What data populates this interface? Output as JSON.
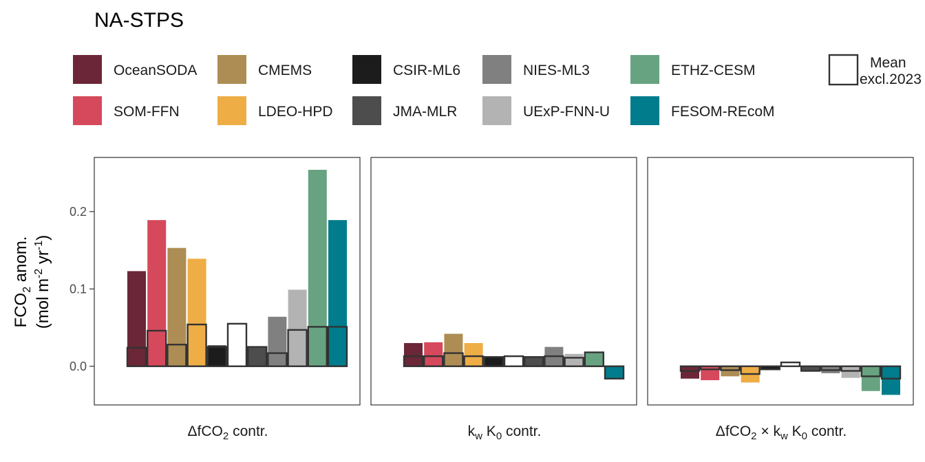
{
  "chart_data": {
    "type": "bar",
    "title": "NA-STPS",
    "ylabel": {
      "line1_prefix": "FCO",
      "line1_sub": "2",
      "line1_suffix": " anom.",
      "line2_a": "(mol m",
      "line2_sup1": "-2",
      "line2_b": " yr",
      "line2_sup2": "-1",
      "line2_c": ")"
    },
    "ylim": [
      -0.05,
      0.27
    ],
    "yticks": [
      {
        "value": 0.0,
        "label": "0.0"
      },
      {
        "value": 0.1,
        "label": "0.1"
      },
      {
        "value": 0.2,
        "label": "0.2"
      }
    ],
    "legend": {
      "placement": "top",
      "items": [
        {
          "name": "OceanSODA",
          "color": "#6b2737"
        },
        {
          "name": "SOM-FFN",
          "color": "#d6495c"
        },
        {
          "name": "CMEMS",
          "color": "#ad8d54"
        },
        {
          "name": "LDEO-HPD",
          "color": "#eead45"
        },
        {
          "name": "CSIR-ML6",
          "color": "#1c1c1c"
        },
        {
          "name": "JMA-MLR",
          "color": "#4d4d4d"
        },
        {
          "name": "NIES-ML3",
          "color": "#808080"
        },
        {
          "name": "UExP-FNN-U",
          "color": "#b3b3b3"
        },
        {
          "name": "ETHZ-CESM",
          "color": "#67a380"
        },
        {
          "name": "FESOM-REcoM",
          "color": "#007c8c"
        }
      ],
      "outline_item": {
        "line1": "Mean",
        "line2": "excl.2023"
      }
    },
    "series_order": [
      "OceanSODA",
      "SOM-FFN",
      "CMEMS",
      "LDEO-HPD",
      "CSIR-ML6",
      "Mean excl.2023",
      "JMA-MLR",
      "NIES-ML3",
      "UExP-FNN-U",
      "ETHZ-CESM",
      "FESOM-REcoM"
    ],
    "panels": [
      {
        "label": {
          "a": "ΔfCO",
          "sub": "2",
          "b": " contr."
        },
        "anomaly": [
          0.123,
          0.189,
          0.153,
          0.139,
          0.027,
          null,
          0.02,
          0.064,
          0.099,
          0.254,
          0.189
        ],
        "mean_excl": [
          0.024,
          0.046,
          0.028,
          0.054,
          0.025,
          0.055,
          0.025,
          0.017,
          0.047,
          0.051,
          0.051
        ]
      },
      {
        "label": {
          "a": "k",
          "sub1": "w",
          "b": " K",
          "sub2": "0",
          "c": " contr."
        },
        "anomaly": [
          0.03,
          0.031,
          0.042,
          0.03,
          0.012,
          null,
          0.012,
          0.025,
          0.016,
          0.018,
          -0.014
        ],
        "mean_excl": [
          0.013,
          0.013,
          0.017,
          0.013,
          0.012,
          0.013,
          0.012,
          0.013,
          0.011,
          0.018,
          -0.016
        ]
      },
      {
        "label": {
          "a": "ΔfCO",
          "sub1": "2",
          "b": " × k",
          "sub2": "w",
          "c": " K",
          "sub3": "0",
          "d": " contr."
        },
        "anomaly": [
          -0.016,
          -0.018,
          -0.013,
          -0.021,
          -0.004,
          null,
          -0.006,
          -0.009,
          -0.015,
          -0.032,
          -0.037
        ],
        "mean_excl": [
          -0.006,
          -0.004,
          -0.005,
          -0.01,
          -0.004,
          0.005,
          -0.006,
          -0.005,
          -0.006,
          -0.013,
          -0.016
        ]
      }
    ]
  }
}
